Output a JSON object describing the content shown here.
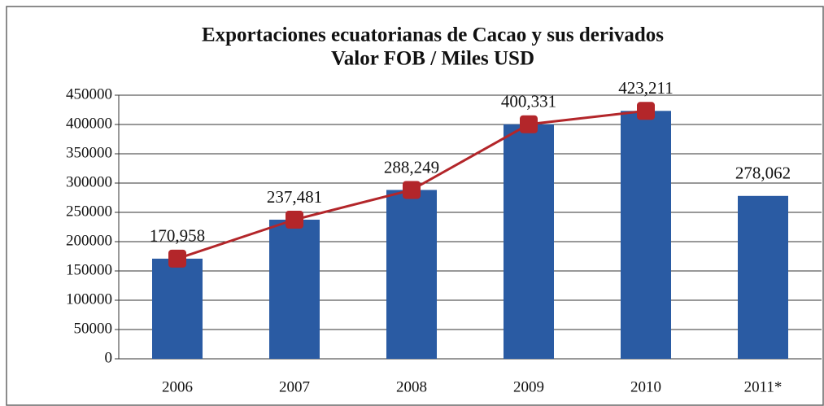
{
  "chart_data": {
    "type": "bar",
    "title": "Exportaciones ecuatorianas de Cacao y sus derivados",
    "subtitle": "Valor FOB / Miles USD",
    "categories": [
      "2006",
      "2007",
      "2008",
      "2009",
      "2010",
      "2011*"
    ],
    "values": [
      170958,
      237481,
      288249,
      400331,
      423211,
      278062
    ],
    "value_labels": [
      "170,958",
      "237,481",
      "288,249",
      "400,331",
      "423,211",
      "278,062"
    ],
    "color": "#2a5ba3",
    "line": {
      "values": [
        170958,
        237481,
        288249,
        400331,
        423211,
        null
      ],
      "color": "#b3262a"
    },
    "ylim": [
      0,
      450000
    ],
    "yticks": [
      0,
      50000,
      100000,
      150000,
      200000,
      250000,
      300000,
      350000,
      400000,
      450000
    ],
    "grid": true
  }
}
